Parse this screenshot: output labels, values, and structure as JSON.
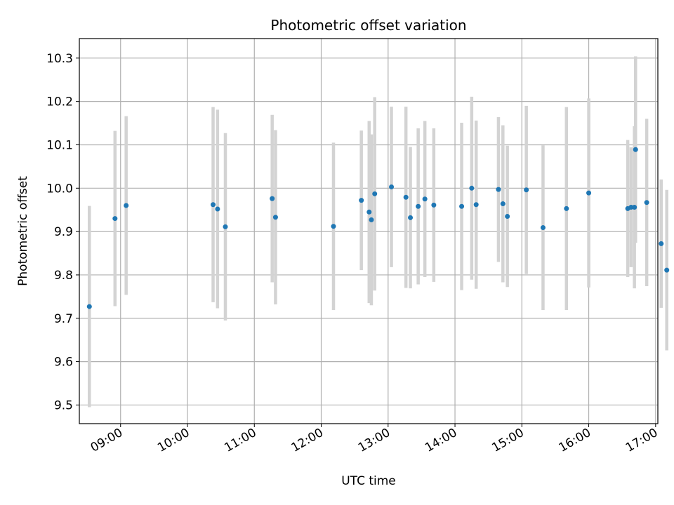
{
  "chart_data": {
    "type": "scatter",
    "title": "Photometric offset variation",
    "xlabel": "UTC time",
    "ylabel": "Photometric offset",
    "xlim": [
      "08:23",
      "17:02"
    ],
    "ylim": [
      9.457,
      10.345
    ],
    "grid": true,
    "x_ticks": [
      "09:00",
      "10:00",
      "11:00",
      "12:00",
      "13:00",
      "14:00",
      "15:00",
      "16:00",
      "17:00"
    ],
    "y_ticks": [
      "9.5",
      "9.6",
      "9.7",
      "9.8",
      "9.9",
      "10.0",
      "10.1",
      "10.2",
      "10.3"
    ],
    "point_color": "#1f77b4",
    "errorbar_color": "#d3d3d3",
    "series": [
      {
        "points": [
          {
            "x": "08:32",
            "y": 9.727,
            "err": 0.232
          },
          {
            "x": "08:55",
            "y": 9.93,
            "err": 0.202
          },
          {
            "x": "09:05",
            "y": 9.96,
            "err": 0.206
          },
          {
            "x": "10:23",
            "y": 9.962,
            "err": 0.225
          },
          {
            "x": "10:27",
            "y": 9.952,
            "err": 0.229
          },
          {
            "x": "10:34",
            "y": 9.911,
            "err": 0.216
          },
          {
            "x": "11:16",
            "y": 9.976,
            "err": 0.193
          },
          {
            "x": "11:19",
            "y": 9.933,
            "err": 0.201
          },
          {
            "x": "12:11",
            "y": 9.912,
            "err": 0.193
          },
          {
            "x": "12:36",
            "y": 9.972,
            "err": 0.161
          },
          {
            "x": "12:43",
            "y": 9.945,
            "err": 0.21
          },
          {
            "x": "12:45",
            "y": 9.927,
            "err": 0.197
          },
          {
            "x": "12:48",
            "y": 9.987,
            "err": 0.223
          },
          {
            "x": "13:03",
            "y": 10.003,
            "err": 0.185
          },
          {
            "x": "13:16",
            "y": 9.979,
            "err": 0.209
          },
          {
            "x": "13:20",
            "y": 9.932,
            "err": 0.163
          },
          {
            "x": "13:27",
            "y": 9.958,
            "err": 0.18
          },
          {
            "x": "13:33",
            "y": 9.975,
            "err": 0.18
          },
          {
            "x": "13:41",
            "y": 9.961,
            "err": 0.177
          },
          {
            "x": "14:06",
            "y": 9.958,
            "err": 0.193
          },
          {
            "x": "14:15",
            "y": 10.0,
            "err": 0.211
          },
          {
            "x": "14:19",
            "y": 9.962,
            "err": 0.194
          },
          {
            "x": "14:39",
            "y": 9.997,
            "err": 0.167
          },
          {
            "x": "14:43",
            "y": 9.964,
            "err": 0.181
          },
          {
            "x": "14:47",
            "y": 9.935,
            "err": 0.163
          },
          {
            "x": "15:04",
            "y": 9.996,
            "err": 0.194
          },
          {
            "x": "15:19",
            "y": 9.909,
            "err": 0.19
          },
          {
            "x": "15:40",
            "y": 9.953,
            "err": 0.234
          },
          {
            "x": "16:00",
            "y": 9.989,
            "err": 0.218
          },
          {
            "x": "16:35",
            "y": 9.953,
            "err": 0.158
          },
          {
            "x": "16:38",
            "y": 9.956,
            "err": 0.138
          },
          {
            "x": "16:41",
            "y": 9.956,
            "err": 0.187
          },
          {
            "x": "16:42",
            "y": 10.089,
            "err": 0.215
          },
          {
            "x": "16:52",
            "y": 9.967,
            "err": 0.193
          },
          {
            "x": "17:05",
            "y": 9.872,
            "err": 0.148
          },
          {
            "x": "17:10",
            "y": 9.811,
            "err": 0.185
          }
        ]
      }
    ]
  }
}
